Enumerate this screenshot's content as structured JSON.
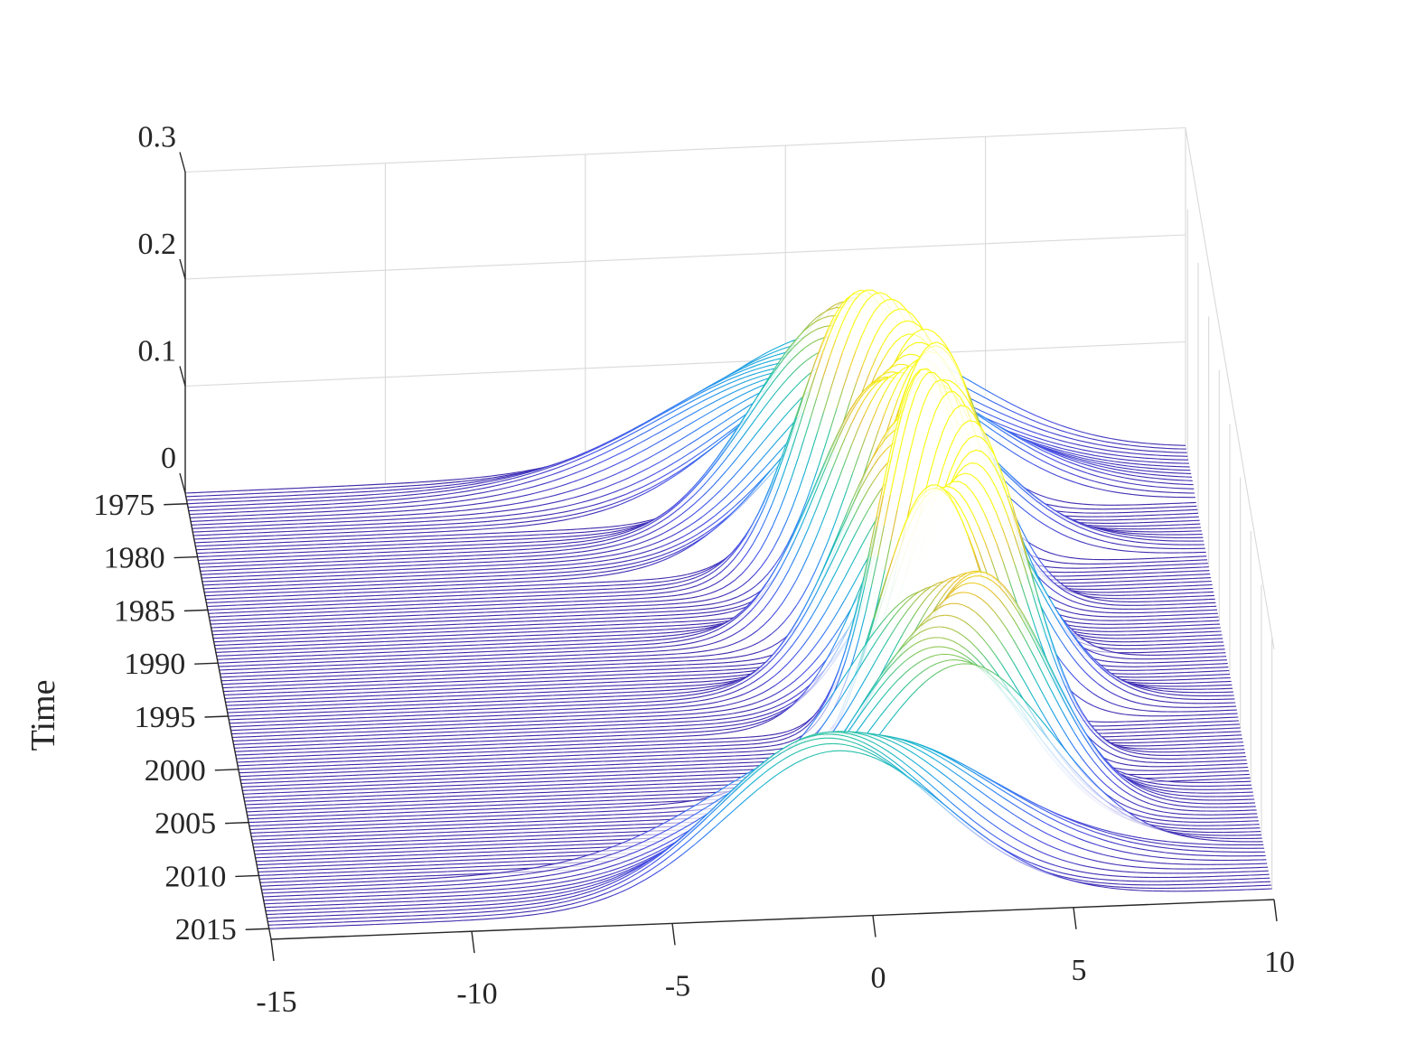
{
  "chart_data": {
    "type": "waterfall-3d",
    "title": "",
    "xlabel": "",
    "ylabel": "Time",
    "zlabel": "",
    "xlim": [
      -15,
      10
    ],
    "ylim": [
      1974,
      2016
    ],
    "zlim": [
      0,
      0.3
    ],
    "x_ticks": [
      "-15",
      "-10",
      "-5",
      "0",
      "5",
      "10"
    ],
    "y_ticks": [
      "1975",
      "1980",
      "1985",
      "1990",
      "1995",
      "2000",
      "2005",
      "2010",
      "2015"
    ],
    "z_ticks": [
      "0",
      "0.1",
      "0.2",
      "0.3"
    ],
    "grid": true,
    "colormap": "parula",
    "colors": {
      "low": "#3e26a8",
      "mid": "#26bcb0",
      "high": "#f9fb0e"
    },
    "years": [
      1974,
      2015
    ],
    "density_params": {
      "note_fields": [
        "year_from",
        "year_to",
        "mean",
        "sd"
      ],
      "segments": [
        {
          "year_from": 1974,
          "year_to": 1978,
          "mean": 1.0,
          "sd": 3.2
        },
        {
          "year_from": 1979,
          "year_to": 1983,
          "mean": 1.4,
          "sd": 2.2
        },
        {
          "year_from": 1984,
          "year_to": 1987,
          "mean": 1.8,
          "sd": 1.6
        },
        {
          "year_from": 1988,
          "year_to": 1992,
          "mean": 2.2,
          "sd": 1.5
        },
        {
          "year_from": 1993,
          "year_to": 1998,
          "mean": 2.5,
          "sd": 1.7
        },
        {
          "year_from": 1999,
          "year_to": 2004,
          "mean": 2.7,
          "sd": 1.3
        },
        {
          "year_from": 2005,
          "year_to": 2010,
          "mean": 2.5,
          "sd": 2.0
        },
        {
          "year_from": 2011,
          "year_to": 2015,
          "mean": -0.5,
          "sd": 3.0
        }
      ]
    }
  }
}
